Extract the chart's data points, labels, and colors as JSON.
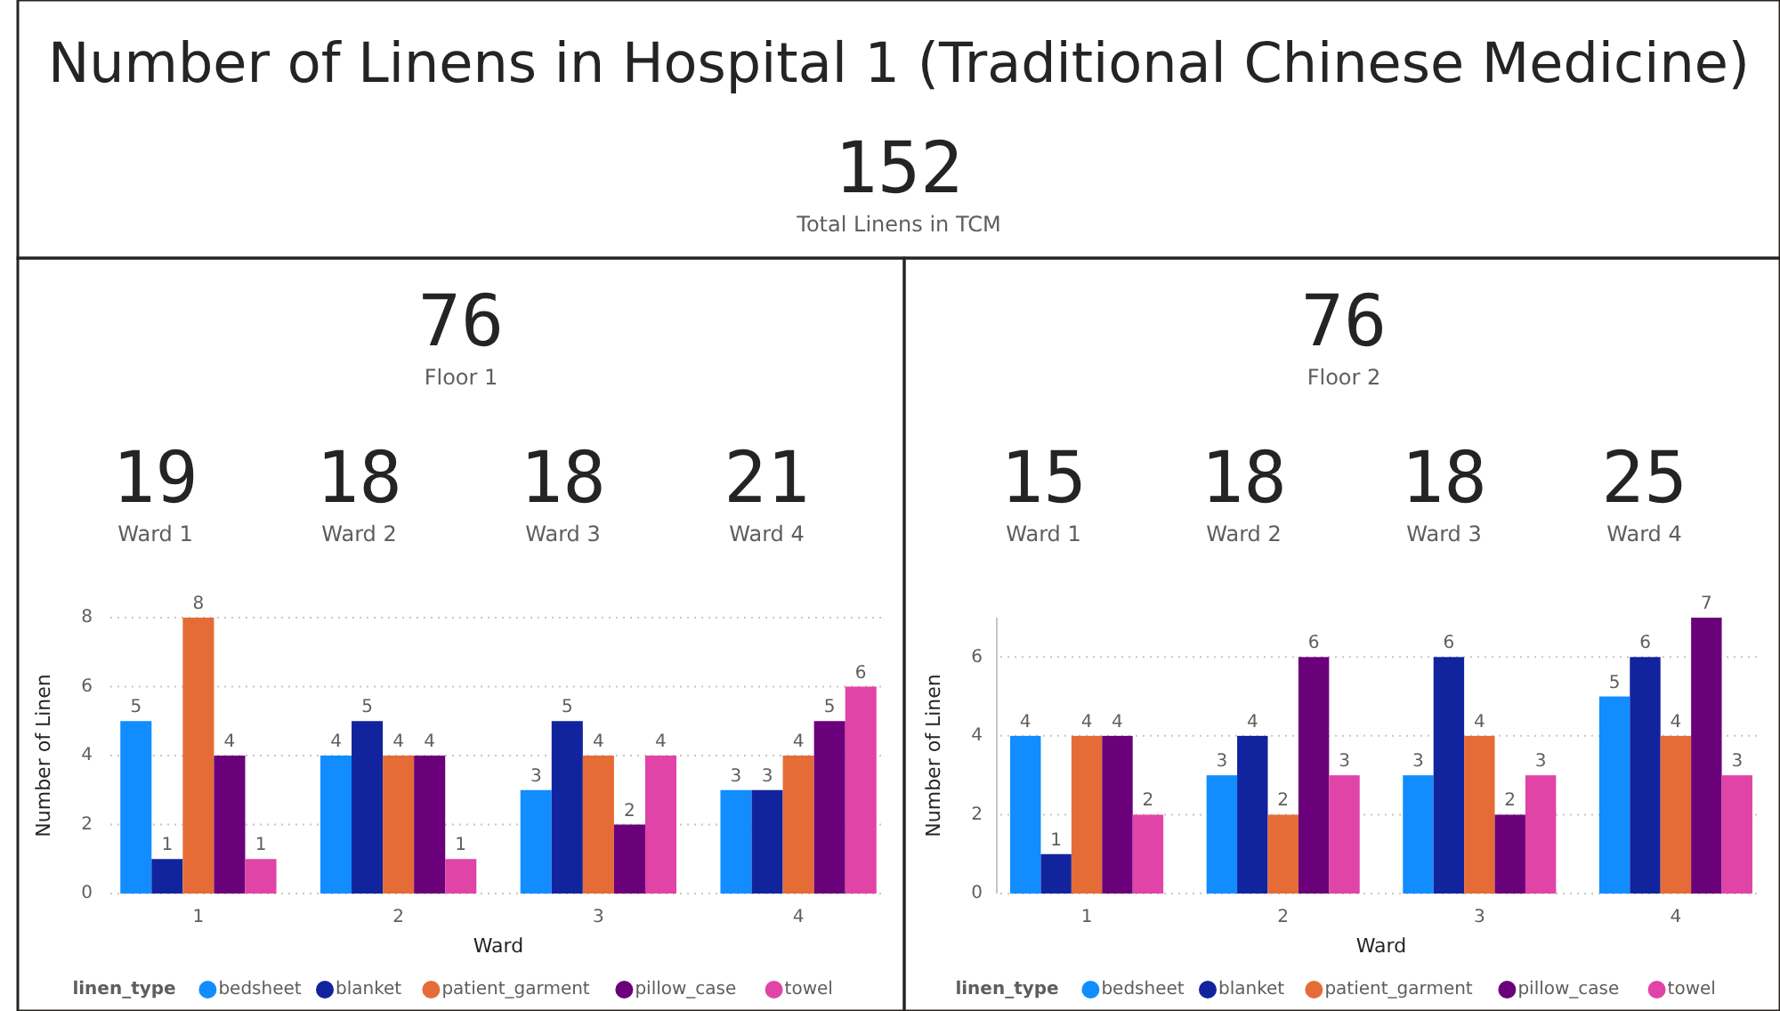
{
  "chart_data": [
    {
      "type": "other",
      "title": "Number of Linens in Hospital 1 (Traditional Chinese Medicine)",
      "annotations": [
        "152",
        "Total Linens in TCM"
      ]
    },
    {
      "type": "other",
      "annotations": [
        "76",
        "Floor 1",
        "19",
        "Ward 1",
        "18",
        "Ward 2",
        "18",
        "Ward 3",
        "21",
        "Ward 4"
      ]
    },
    {
      "type": "bar",
      "categories": [
        "1",
        "2",
        "3",
        "4"
      ],
      "xlabel": "Ward",
      "ylabel": "Number of Linen",
      "legend_title": "linen_type",
      "legend": "bottom",
      "grid": "y",
      "data_labels": true,
      "ylim": [
        0,
        8
      ],
      "yticks": [
        0,
        2,
        4,
        6,
        8
      ],
      "series": [
        {
          "name": "bedsheet",
          "color": "#118dff",
          "values": [
            5,
            4,
            3,
            3
          ]
        },
        {
          "name": "blanket",
          "color": "#12239e",
          "values": [
            1,
            5,
            5,
            3
          ]
        },
        {
          "name": "patient_garment",
          "color": "#e66c37",
          "values": [
            8,
            4,
            4,
            4
          ]
        },
        {
          "name": "pillow_case",
          "color": "#6b007b",
          "values": [
            4,
            4,
            2,
            5
          ]
        },
        {
          "name": "towel",
          "color": "#e044a7",
          "values": [
            1,
            1,
            4,
            6
          ]
        }
      ]
    },
    {
      "type": "other",
      "annotations": [
        "76",
        "Floor 2",
        "15",
        "Ward 1",
        "18",
        "Ward 2",
        "18",
        "Ward 3",
        "25",
        "Ward 4"
      ]
    },
    {
      "type": "bar",
      "categories": [
        "1",
        "2",
        "3",
        "4"
      ],
      "xlabel": "Ward",
      "ylabel": "Number of Linen",
      "legend_title": "linen_type",
      "legend": "bottom",
      "grid": "y",
      "data_labels": true,
      "ylim": [
        0,
        7
      ],
      "yticks": [
        0,
        2,
        4,
        6
      ],
      "series": [
        {
          "name": "bedsheet",
          "color": "#118dff",
          "values": [
            4,
            3,
            3,
            5
          ]
        },
        {
          "name": "blanket",
          "color": "#12239e",
          "values": [
            1,
            4,
            6,
            6
          ]
        },
        {
          "name": "patient_garment",
          "color": "#e66c37",
          "values": [
            4,
            2,
            4,
            4
          ]
        },
        {
          "name": "pillow_case",
          "color": "#6b007b",
          "values": [
            4,
            6,
            2,
            7
          ]
        },
        {
          "name": "towel",
          "color": "#e044a7",
          "values": [
            2,
            3,
            3,
            3
          ]
        }
      ]
    }
  ]
}
